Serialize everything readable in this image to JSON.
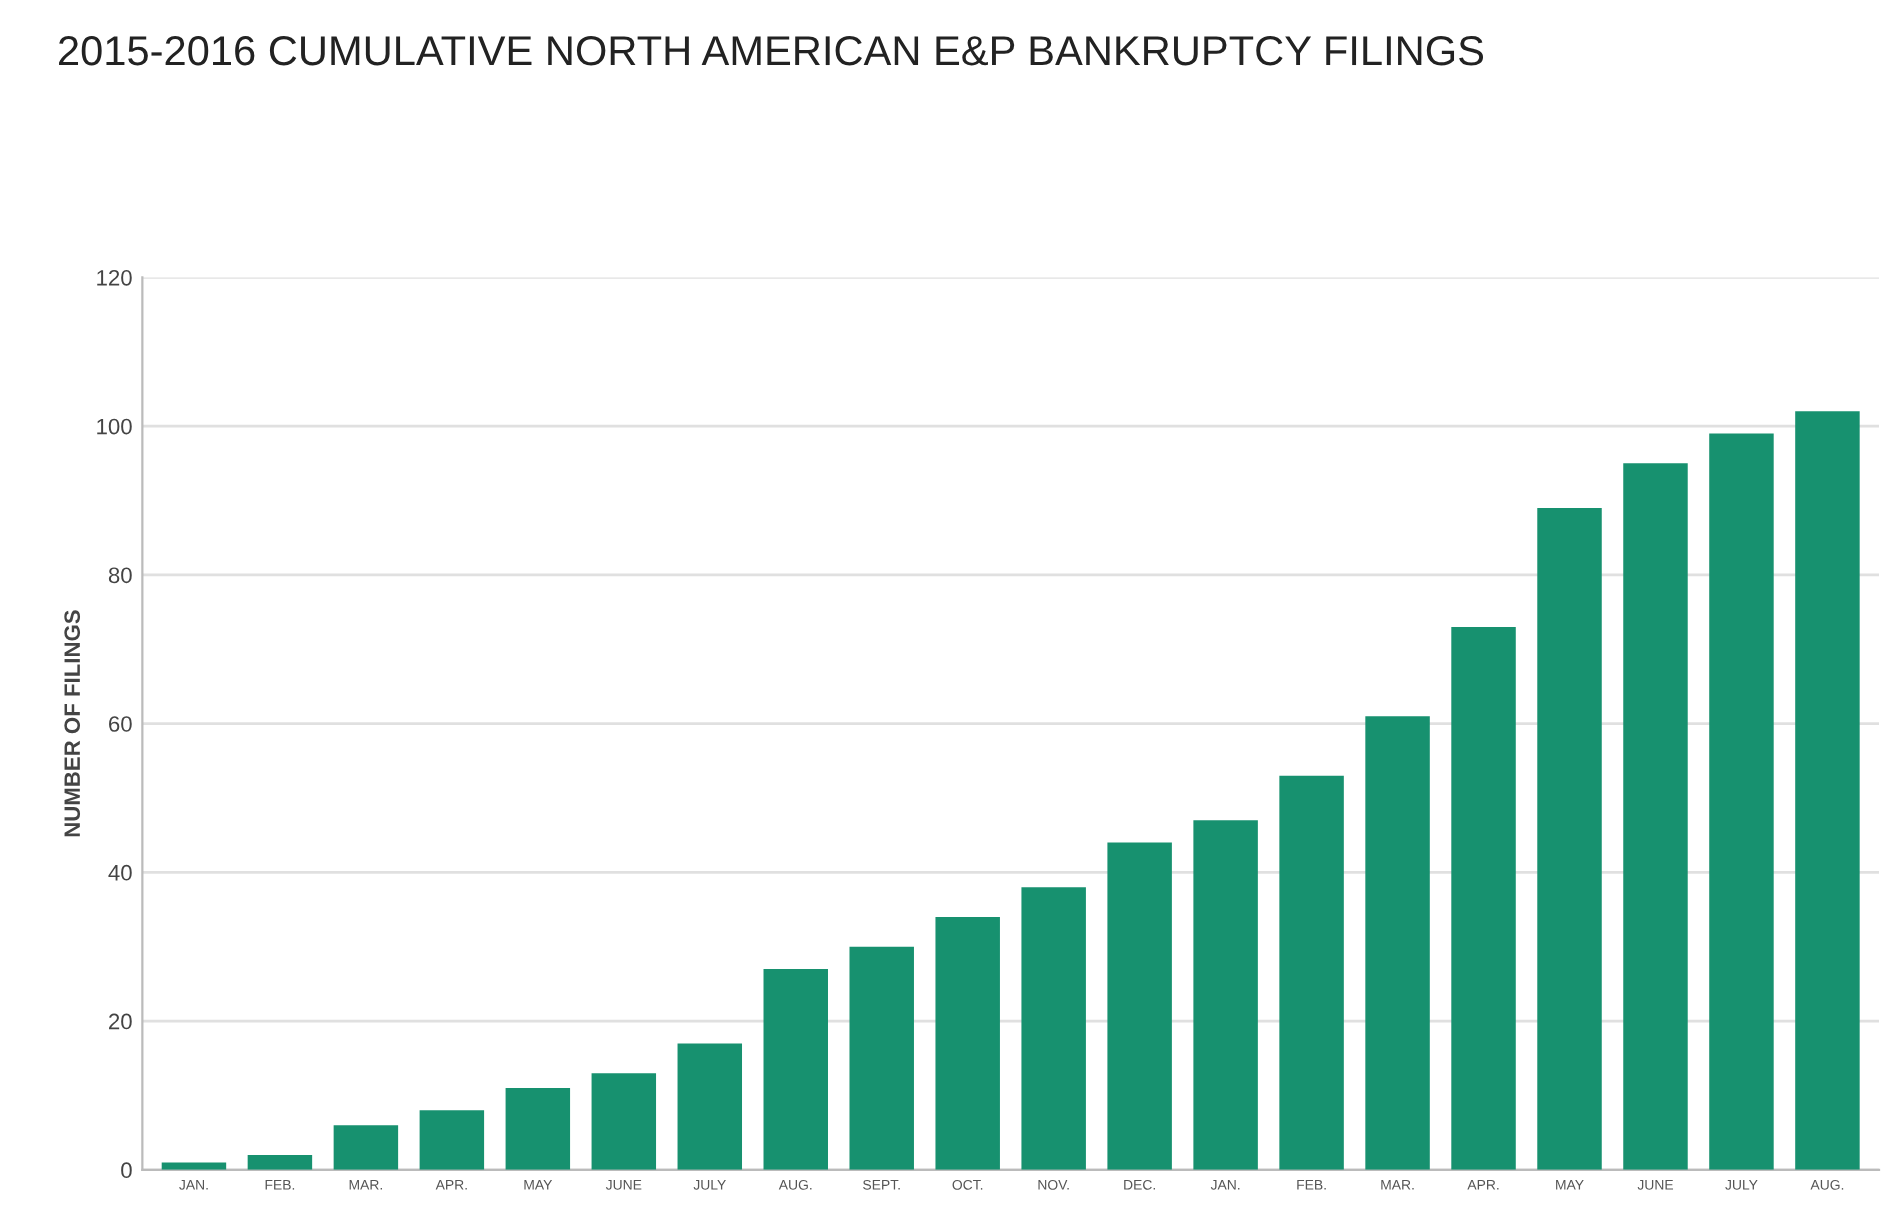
{
  "chart_data": {
    "type": "bar",
    "title": "2015-2016 CUMULATIVE NORTH AMERICAN E&P BANKRUPTCY FILINGS",
    "ylabel": "NUMBER OF FILINGS",
    "categories": [
      "JAN.",
      "FEB.",
      "MAR.",
      "APR.",
      "MAY",
      "JUNE",
      "JULY",
      "AUG.",
      "SEPT.",
      "OCT.",
      "NOV.",
      "DEC.",
      "JAN.",
      "FEB.",
      "MAR.",
      "APR.",
      "MAY",
      "JUNE",
      "JULY",
      "AUG."
    ],
    "values": [
      1,
      2,
      6,
      8,
      11,
      13,
      17,
      27,
      30,
      34,
      38,
      44,
      47,
      53,
      61,
      73,
      89,
      95,
      99,
      102
    ],
    "color": "#17916f",
    "ylim": [
      0,
      120
    ],
    "yticks": [
      0,
      20,
      40,
      60,
      80,
      100,
      120
    ],
    "grid": "y"
  }
}
